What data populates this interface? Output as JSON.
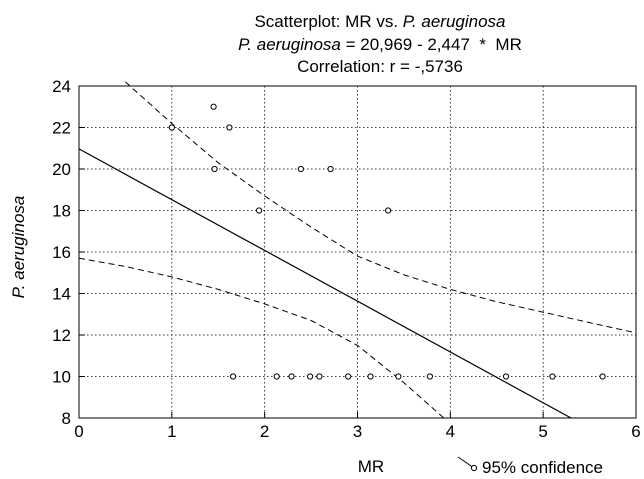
{
  "chart_data": {
    "type": "scatter",
    "title": {
      "line1_prefix": "Scatterplot: MR vs. ",
      "line1_italic": "P. aeruginosa",
      "line2_italic": "P. aeruginosa",
      "line2_rest": " = 20,969 - 2,447  *  MR",
      "line3": "Correlation: r = -,5736"
    },
    "xlabel": "MR",
    "ylabel": "P. aeruginosa",
    "xlim": [
      0,
      6
    ],
    "ylim": [
      8,
      24
    ],
    "x_ticks": [
      0,
      1,
      2,
      3,
      4,
      5,
      6
    ],
    "y_ticks": [
      8,
      10,
      12,
      14,
      16,
      18,
      20,
      22,
      24
    ],
    "grid": true,
    "legend": {
      "label": "95% confidence",
      "placement": "bottom-right"
    },
    "regression": {
      "intercept": 20.969,
      "slope": -2.447
    },
    "points": [
      {
        "x": 1.0,
        "y": 22
      },
      {
        "x": 1.45,
        "y": 23
      },
      {
        "x": 1.62,
        "y": 22
      },
      {
        "x": 1.46,
        "y": 20
      },
      {
        "x": 1.94,
        "y": 18
      },
      {
        "x": 2.39,
        "y": 20
      },
      {
        "x": 2.71,
        "y": 20
      },
      {
        "x": 3.33,
        "y": 18
      },
      {
        "x": 1.66,
        "y": 10
      },
      {
        "x": 2.13,
        "y": 10
      },
      {
        "x": 2.29,
        "y": 10
      },
      {
        "x": 2.49,
        "y": 10
      },
      {
        "x": 2.59,
        "y": 10
      },
      {
        "x": 2.9,
        "y": 10
      },
      {
        "x": 3.14,
        "y": 10
      },
      {
        "x": 3.44,
        "y": 10
      },
      {
        "x": 3.78,
        "y": 10
      },
      {
        "x": 4.6,
        "y": 10
      },
      {
        "x": 5.1,
        "y": 10
      },
      {
        "x": 5.64,
        "y": 10
      }
    ],
    "confidence_upper": [
      {
        "x": 0.5,
        "y": 24.2
      },
      {
        "x": 1.0,
        "y": 22.2
      },
      {
        "x": 1.5,
        "y": 20.3
      },
      {
        "x": 2.0,
        "y": 18.7
      },
      {
        "x": 2.5,
        "y": 17.2
      },
      {
        "x": 3.0,
        "y": 15.8
      },
      {
        "x": 3.5,
        "y": 14.9
      },
      {
        "x": 4.0,
        "y": 14.2
      },
      {
        "x": 4.5,
        "y": 13.6
      },
      {
        "x": 5.0,
        "y": 13.1
      },
      {
        "x": 5.5,
        "y": 12.6
      },
      {
        "x": 6.0,
        "y": 12.1
      }
    ],
    "confidence_lower": [
      {
        "x": 0.0,
        "y": 15.7
      },
      {
        "x": 0.5,
        "y": 15.3
      },
      {
        "x": 1.0,
        "y": 14.8
      },
      {
        "x": 1.5,
        "y": 14.2
      },
      {
        "x": 2.0,
        "y": 13.5
      },
      {
        "x": 2.5,
        "y": 12.7
      },
      {
        "x": 3.0,
        "y": 11.5
      },
      {
        "x": 3.5,
        "y": 9.7
      },
      {
        "x": 3.93,
        "y": 8.0
      }
    ]
  }
}
